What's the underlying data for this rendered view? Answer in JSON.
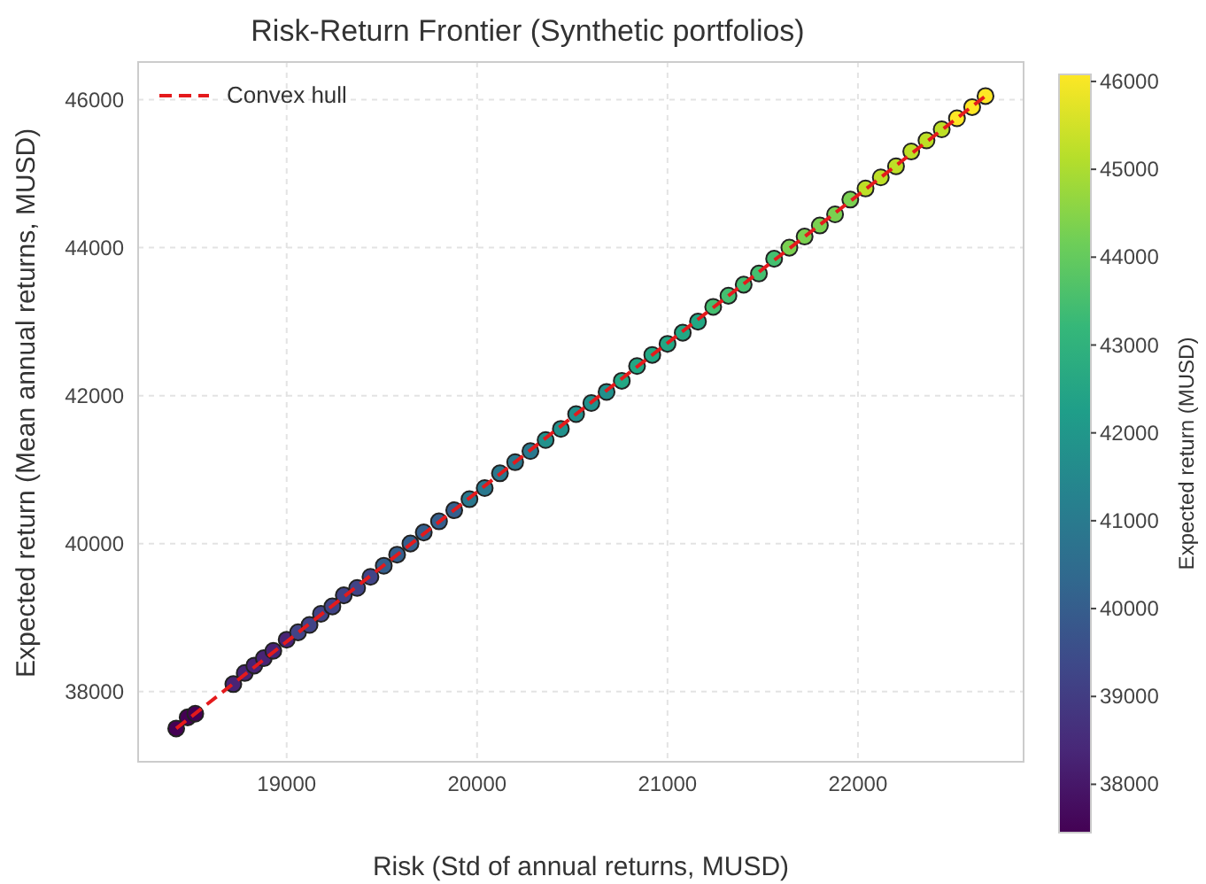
{
  "chart_data": {
    "type": "scatter",
    "title": "Risk-Return Frontier (Synthetic portfolios)",
    "xlabel": "Risk (Std of annual returns, MUSD)",
    "ylabel": "Expected return (Mean annual returns, MUSD)",
    "clabel": "Expected return (MUSD)",
    "xlim": [
      18220,
      22870
    ],
    "xticks": [
      19000,
      20000,
      21000,
      22000
    ],
    "ylim": [
      37050,
      46510
    ],
    "yticks": [
      38000,
      40000,
      42000,
      44000,
      46000
    ],
    "clim": [
      37450,
      46080
    ],
    "cticks": [
      38000,
      39000,
      40000,
      41000,
      42000,
      43000,
      44000,
      45000,
      46000
    ],
    "grid": true,
    "legend": "top left",
    "marker": "circle",
    "series": [
      {
        "x": [
          18420,
          18480,
          18520,
          18720,
          18780,
          18830,
          18880,
          18930,
          19000,
          19060,
          19120,
          19180,
          19240,
          19300,
          19370,
          19440,
          19510,
          19580,
          19650,
          19720,
          19800,
          19880,
          19960,
          20040,
          20120,
          20200,
          20280,
          20360,
          20440,
          20520,
          20600,
          20680,
          20760,
          20840,
          20920,
          21000,
          21080,
          21160,
          21240,
          21320,
          21400,
          21480,
          21560,
          21640,
          21720,
          21800,
          21880,
          21960,
          22040,
          22120,
          22200,
          22280,
          22360,
          22440,
          22520,
          22600,
          22670
        ],
        "values": [
          37500,
          37650,
          37700,
          38100,
          38250,
          38350,
          38450,
          38550,
          38700,
          38800,
          38900,
          39050,
          39150,
          39300,
          39400,
          39550,
          39700,
          39850,
          40000,
          40150,
          40300,
          40450,
          40600,
          40750,
          40950,
          41100,
          41250,
          41400,
          41550,
          41750,
          41900,
          42050,
          42200,
          42400,
          42550,
          42700,
          42850,
          43000,
          43200,
          43350,
          43500,
          43650,
          43850,
          44000,
          44150,
          44300,
          44450,
          44650,
          44800,
          44950,
          45100,
          45300,
          45450,
          45600,
          45750,
          45900,
          46050
        ],
        "colors": [
          "#440154",
          "#440154",
          "#440154",
          "#482475",
          "#482475",
          "#482475",
          "#482475",
          "#482475",
          "#482475",
          "#414487",
          "#414487",
          "#414487",
          "#414487",
          "#414487",
          "#414487",
          "#414487",
          "#355f8d",
          "#355f8d",
          "#355f8d",
          "#355f8d",
          "#355f8d",
          "#355f8d",
          "#2a788e",
          "#2a788e",
          "#2a788e",
          "#2a788e",
          "#2a788e",
          "#21918c",
          "#21918c",
          "#21918c",
          "#21918c",
          "#21918c",
          "#22a884",
          "#22a884",
          "#22a884",
          "#22a884",
          "#22a884",
          "#22a884",
          "#44bf70",
          "#44bf70",
          "#44bf70",
          "#44bf70",
          "#44bf70",
          "#7ad151",
          "#7ad151",
          "#7ad151",
          "#7ad151",
          "#7ad151",
          "#bddf26",
          "#bddf26",
          "#bddf26",
          "#bddf26",
          "#bddf26",
          "#bddf26",
          "#fde725",
          "#fde725",
          "#fde725"
        ]
      },
      {
        "type": "line",
        "name": "Convex hull",
        "color": "#e41a1c",
        "line_style": "dashed",
        "marker": "none",
        "x": [
          18420,
          20520,
          22670
        ],
        "values": [
          37500,
          41750,
          46050
        ]
      }
    ]
  }
}
